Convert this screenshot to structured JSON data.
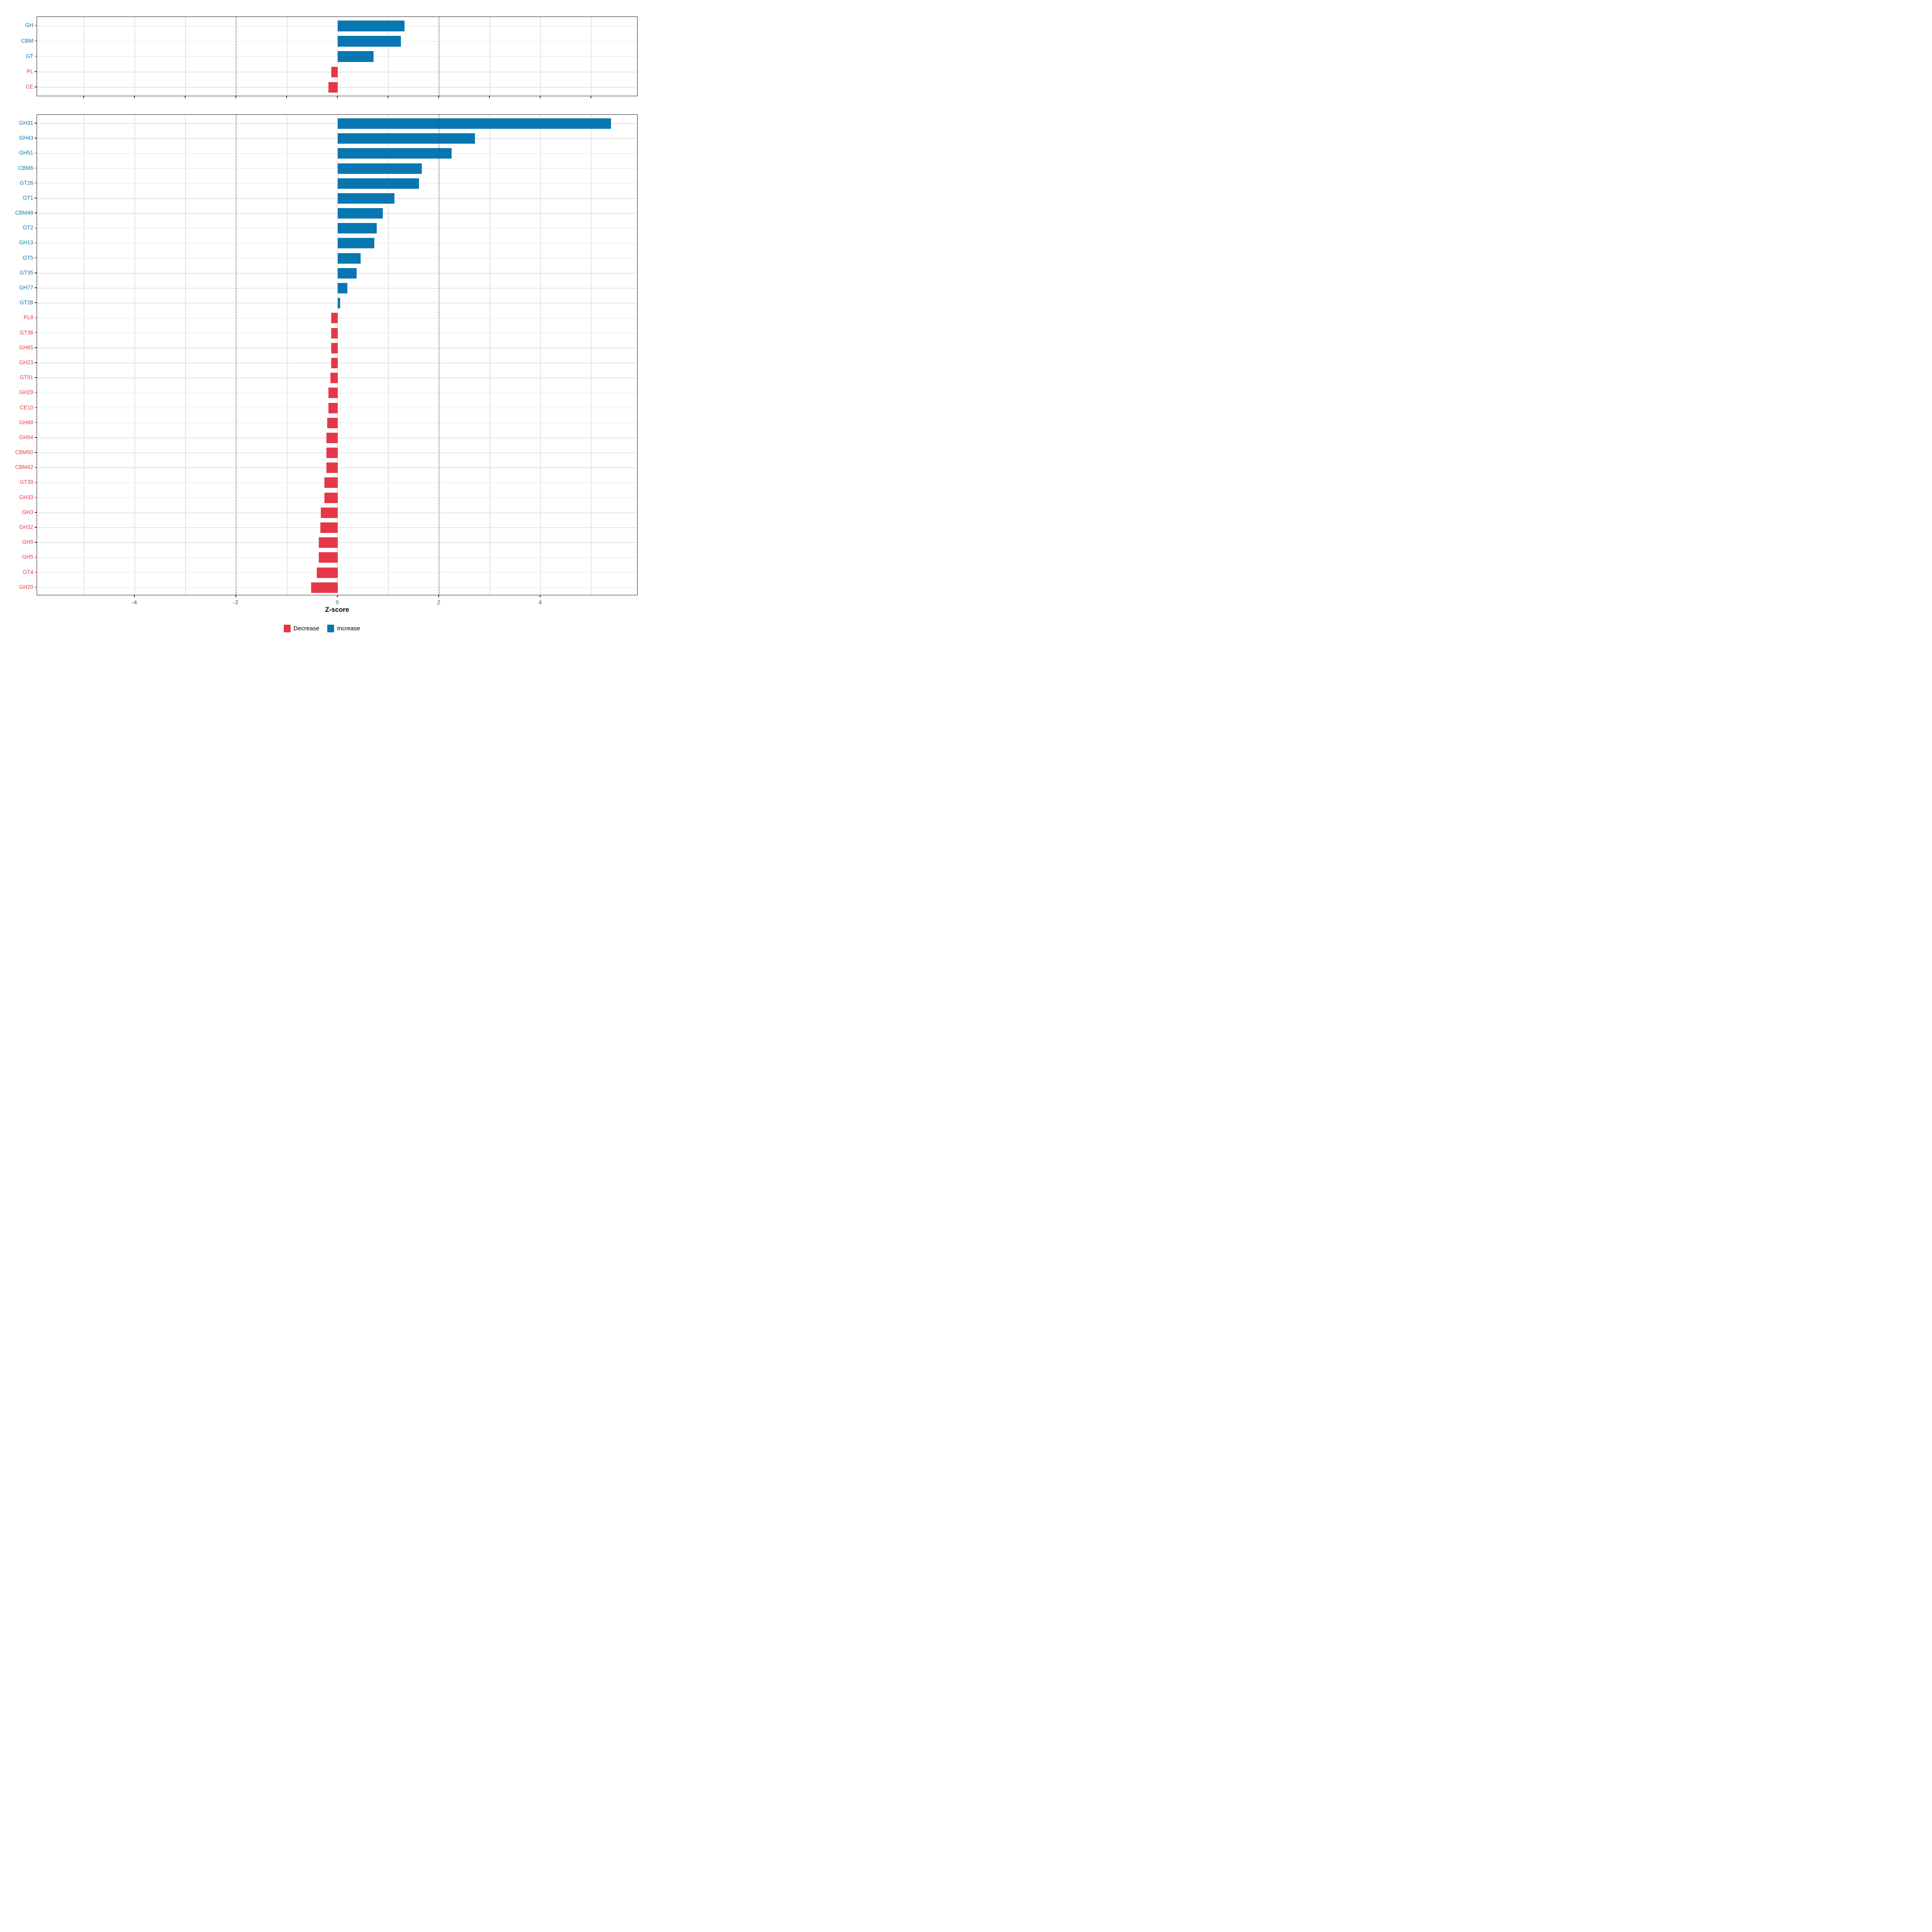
{
  "chart_data": [
    {
      "type": "bar",
      "name": "families",
      "orientation": "horizontal",
      "categories": [
        "GH",
        "CBM",
        "GT",
        "PL",
        "CE"
      ],
      "values": [
        1.32,
        1.25,
        0.71,
        -0.13,
        -0.18
      ],
      "xlim": [
        -5.93,
        5.93
      ],
      "grid": "on",
      "minor_gridlines_every": 1,
      "axis_ticks_every": 1
    },
    {
      "type": "bar",
      "name": "subfamilies",
      "orientation": "horizontal",
      "categories": [
        "GH31",
        "GH43",
        "GH51",
        "CBM6",
        "GT26",
        "GT1",
        "CBM48",
        "GT2",
        "GH13",
        "GT5",
        "GT35",
        "GH77",
        "GT28",
        "PL8",
        "GT36",
        "GH65",
        "GH23",
        "GT51",
        "GH29",
        "CE10",
        "GH68",
        "GH54",
        "CBM50",
        "CBM42",
        "GT39",
        "GH33",
        "GH3",
        "GH32",
        "GH9",
        "GH5",
        "GT4",
        "GH20"
      ],
      "values": [
        5.39,
        2.71,
        2.25,
        1.66,
        1.6,
        1.12,
        0.89,
        0.77,
        0.72,
        0.45,
        0.37,
        0.19,
        0.05,
        -0.13,
        -0.13,
        -0.13,
        -0.13,
        -0.14,
        -0.18,
        -0.18,
        -0.21,
        -0.22,
        -0.22,
        -0.22,
        -0.26,
        -0.26,
        -0.33,
        -0.34,
        -0.37,
        -0.37,
        -0.41,
        -0.52
      ],
      "xlim": [
        -5.93,
        5.93
      ],
      "grid": "on",
      "x_tick_labels": [
        "-4",
        "-2",
        "0",
        "2",
        "4"
      ],
      "x_tick_values": [
        -4,
        -2,
        0,
        2,
        4
      ]
    }
  ],
  "axis": {
    "xlabel": "Z-score",
    "dashed_thresholds": [
      -2,
      2
    ]
  },
  "legend": {
    "position": "bottom-center",
    "items": [
      {
        "label": "Decrease",
        "color": "#e63748"
      },
      {
        "label": "Increase",
        "color": "#0877b1"
      }
    ]
  },
  "colors": {
    "increase": "#0877b1",
    "decrease": "#e63748",
    "gridline": "#e4e4e4",
    "dashed_line": "#404040",
    "panel_border": "#1b1b1b",
    "tick_label": "#4d4d4d"
  }
}
